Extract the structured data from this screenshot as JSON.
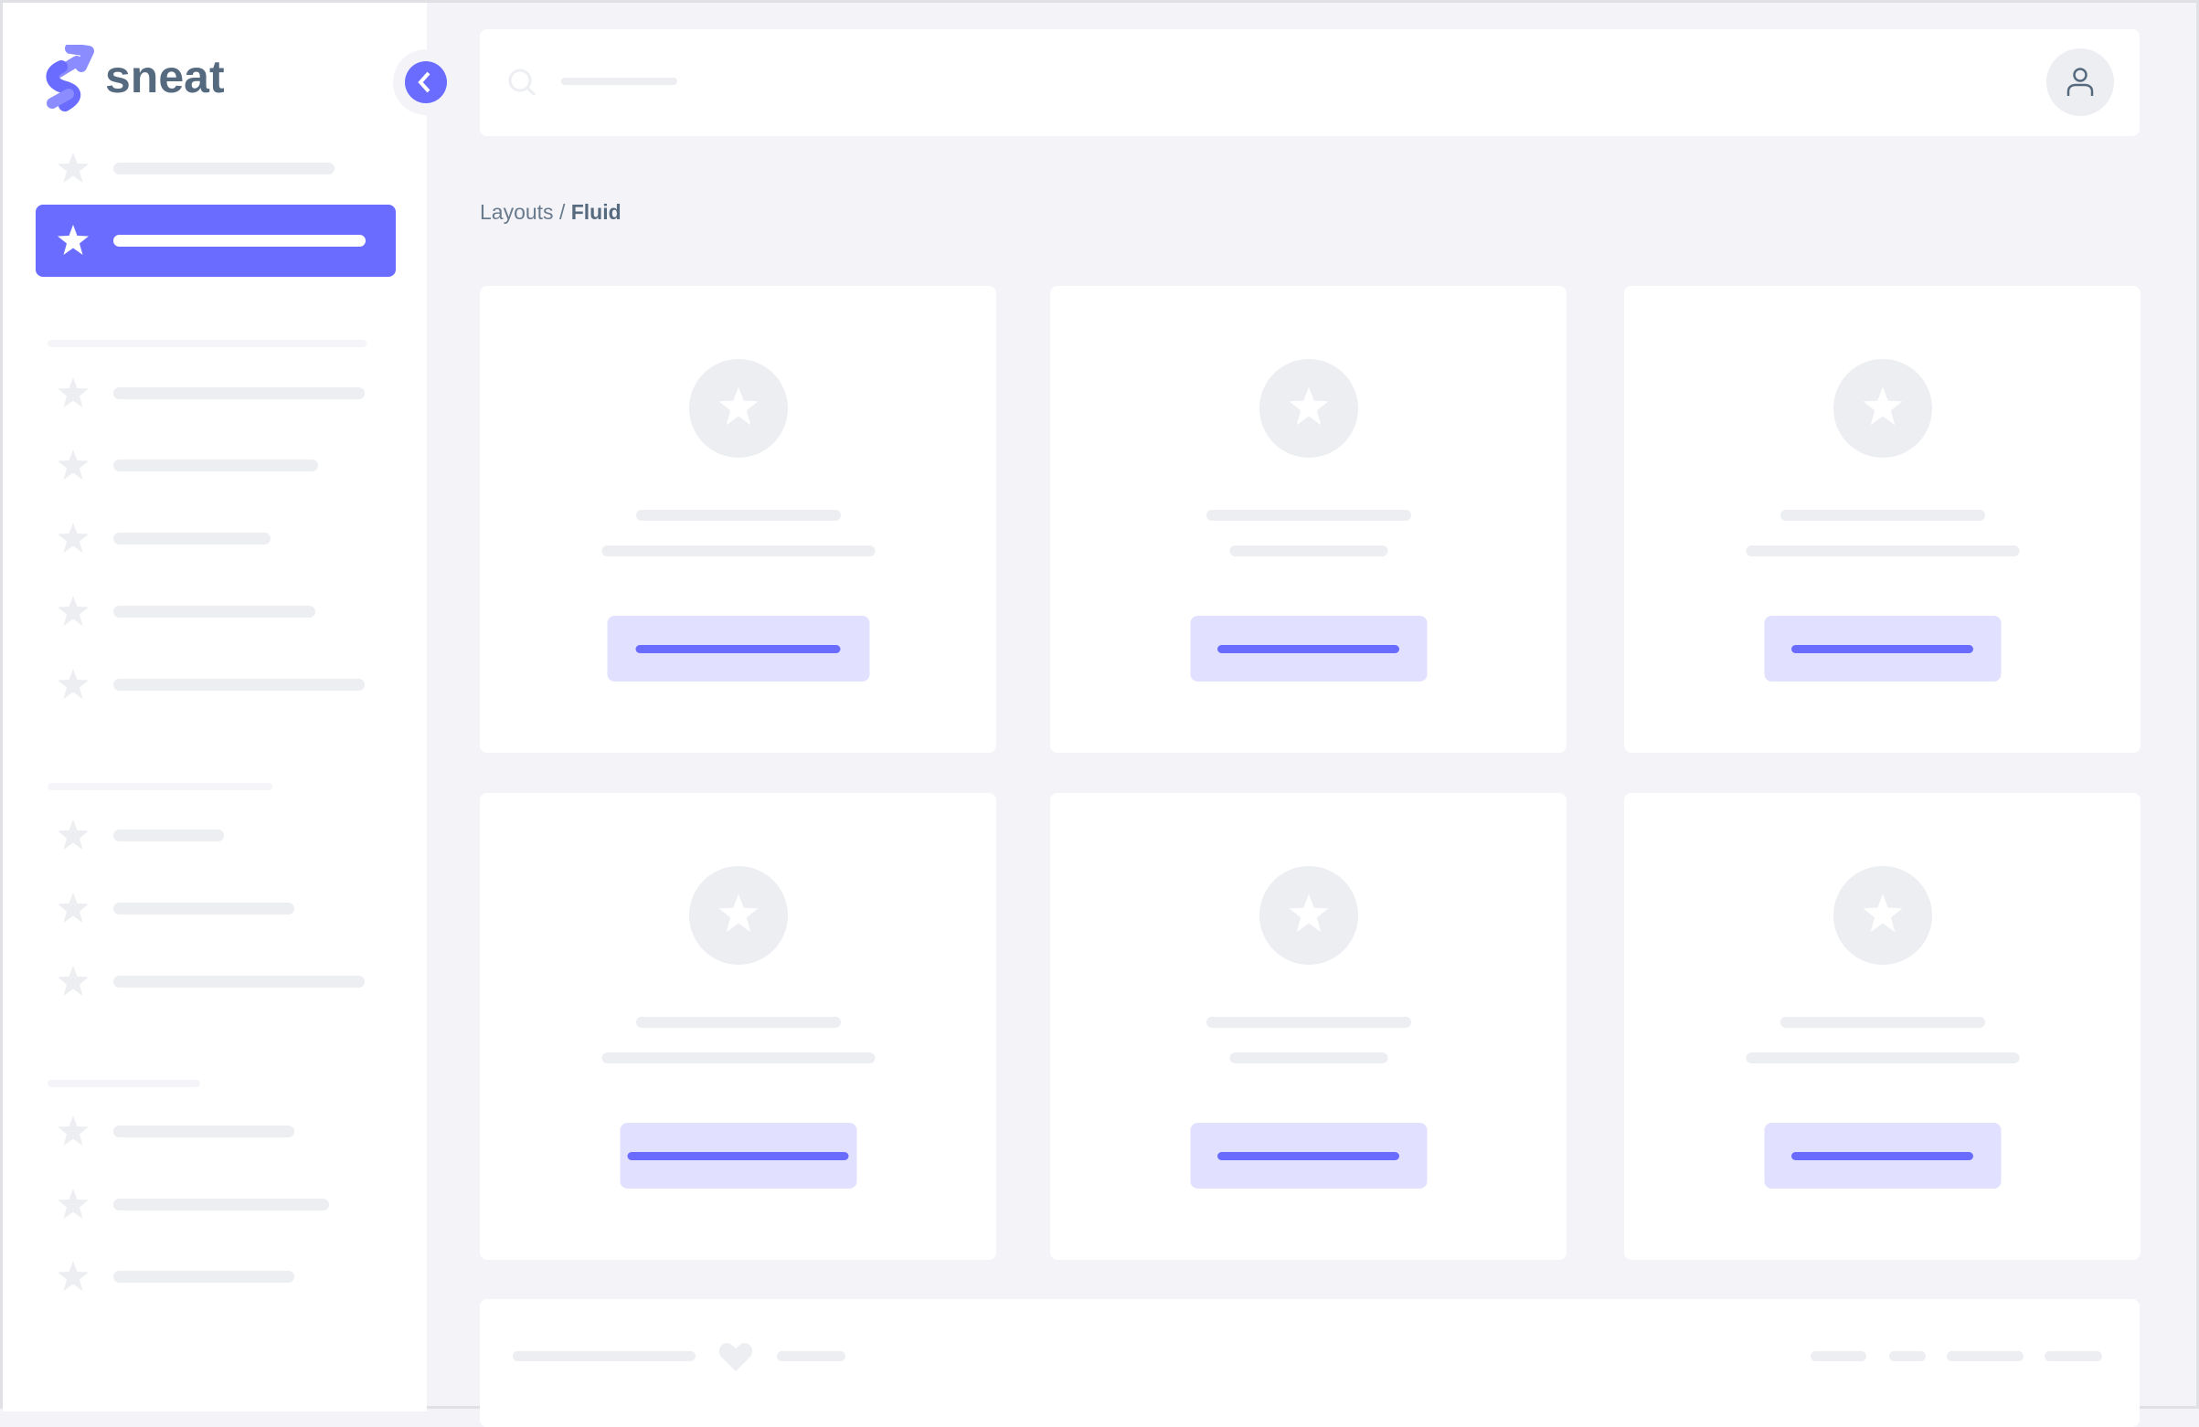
{
  "brand": {
    "name": "sneat",
    "accent": "#696cff",
    "text_color": "#566a7f"
  },
  "breadcrumb": {
    "parent": "Layouts",
    "separator": " / ",
    "current": "Fluid"
  },
  "icons": {
    "nav": "star-icon",
    "search": "search-icon",
    "user": "user-icon",
    "toggle": "chevron-left-icon",
    "footer": "heart-icon"
  }
}
